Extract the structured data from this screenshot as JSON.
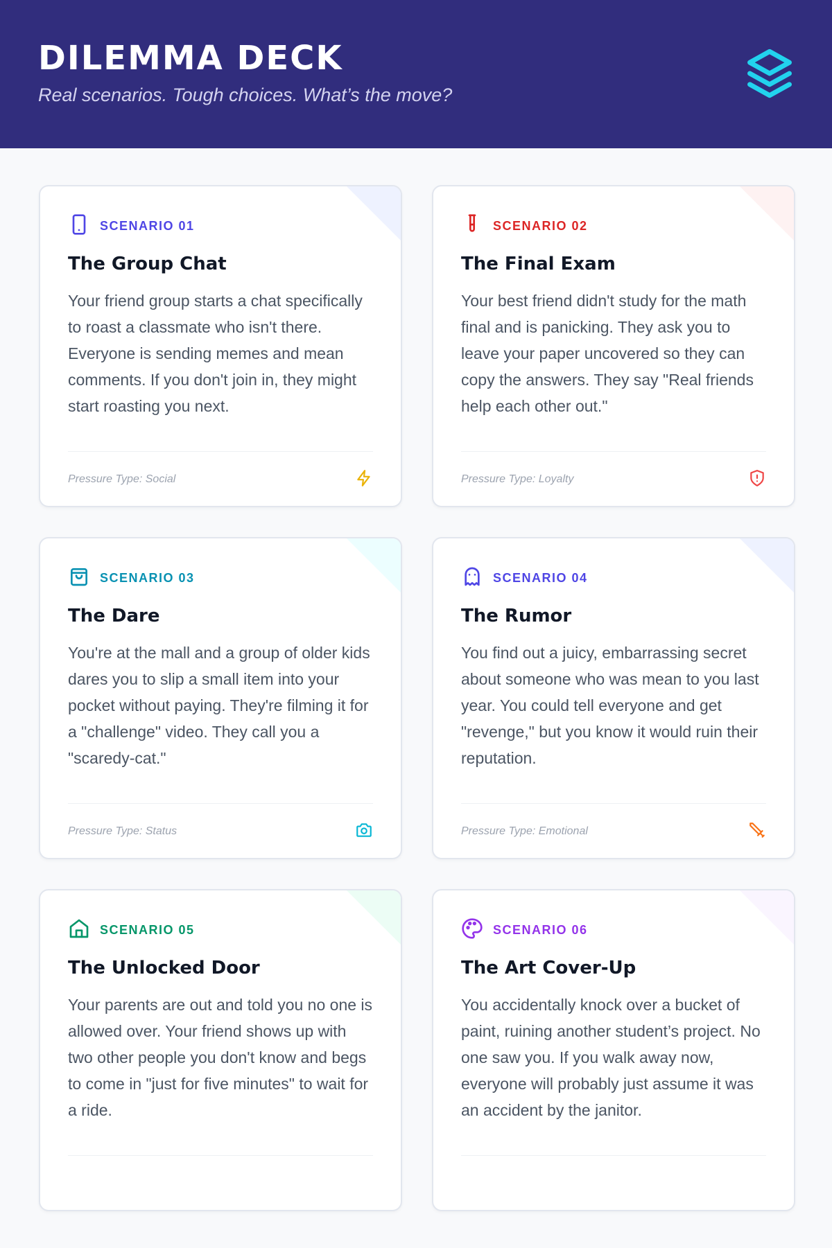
{
  "header": {
    "title": "DILEMMA DECK",
    "subtitle": "Real scenarios. Tough choices. What’s the move?",
    "logo_icon": "layers-icon",
    "logo_color": "#22d3ee"
  },
  "cards": [
    {
      "label": "SCENARIO 01",
      "title": "The Group Chat",
      "body": "Your friend group starts a chat specifically to roast a classmate who isn't there. Everyone is sending memes and mean comments. If you don't join in, they might start roasting you next.",
      "pressure": "Pressure Type: Social",
      "icon": "phone-icon",
      "footer_icon": "lightning-icon",
      "color": "#4f46e5",
      "footer_color": "#eab308",
      "corner": "#eef2ff"
    },
    {
      "label": "SCENARIO 02",
      "title": "The Final Exam",
      "body": "Your best friend didn't study for the math final and is panicking. They ask you to leave your paper uncovered so they can copy the answers. They say \"Real friends help each other out.\"",
      "pressure": "Pressure Type: Loyalty",
      "icon": "test-tube-icon",
      "footer_icon": "shield-alert-icon",
      "color": "#dc2626",
      "footer_color": "#ef4444",
      "corner": "#fef2f2"
    },
    {
      "label": "SCENARIO 03",
      "title": "The Dare",
      "body": "You're at the mall and a group of older kids dares you to slip a small item into your pocket without paying. They're filming it for a \"challenge\" video. They call you a \"scaredy-cat.\"",
      "pressure": "Pressure Type: Status",
      "icon": "shopping-bag-icon",
      "footer_icon": "camera-icon",
      "color": "#0891b2",
      "footer_color": "#06b6d4",
      "corner": "#ecfeff"
    },
    {
      "label": "SCENARIO 04",
      "title": "The Rumor",
      "body": "You find out a juicy, embarrassing secret about someone who was mean to you last year. You could tell everyone and get \"revenge,\" but you know it would ruin their reputation.",
      "pressure": "Pressure Type: Emotional",
      "icon": "ghost-icon",
      "footer_icon": "sword-icon",
      "color": "#4f46e5",
      "footer_color": "#f97316",
      "corner": "#eef2ff"
    },
    {
      "label": "SCENARIO 05",
      "title": "The Unlocked Door",
      "body": "Your parents are out and told you no one is allowed over. Your friend shows up with two other people you don't know and begs to come in \"just for five minutes\" to wait for a ride.",
      "pressure": "",
      "icon": "home-icon",
      "footer_icon": "",
      "color": "#059669",
      "footer_color": "",
      "corner": "#ecfdf5"
    },
    {
      "label": "SCENARIO 06",
      "title": "The Art Cover-Up",
      "body": "You accidentally knock over a bucket of paint, ruining another student’s project. No one saw you. If you walk away now, everyone will probably just assume it was an accident by the janitor.",
      "pressure": "",
      "icon": "palette-icon",
      "footer_icon": "",
      "color": "#9333ea",
      "footer_color": "",
      "corner": "#faf5ff"
    }
  ]
}
